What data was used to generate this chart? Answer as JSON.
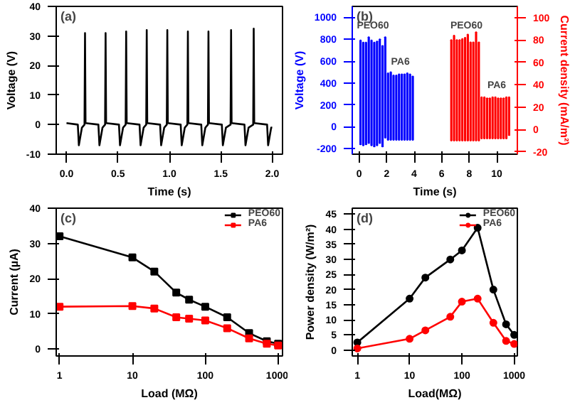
{
  "chart_data": [
    {
      "type": "line",
      "title": "(a)",
      "xlabel": "Time (s)",
      "ylabel": "Voltage (V)",
      "xlim": [
        -0.1,
        2.1
      ],
      "ylim": [
        -10,
        40
      ],
      "xticks": [
        {
          "value": 0,
          "label": "0.0"
        },
        {
          "value": 0.5,
          "label": "0.5"
        },
        {
          "value": 1,
          "label": "1.0"
        },
        {
          "value": 1.5,
          "label": "1.5"
        },
        {
          "value": 2,
          "label": "2.0"
        }
      ],
      "yticks": [
        -10,
        0,
        10,
        20,
        30,
        40
      ],
      "grid": false,
      "legend": false,
      "marker": "none",
      "line_style": "solid",
      "x": [
        0.0,
        0.11,
        0.12,
        0.15,
        0.175,
        0.18,
        0.185,
        0.31,
        0.32,
        0.35,
        0.375,
        0.38,
        0.385,
        0.51,
        0.52,
        0.55,
        0.575,
        0.58,
        0.585,
        0.71,
        0.72,
        0.75,
        0.775,
        0.78,
        0.785,
        0.91,
        0.92,
        0.95,
        0.975,
        0.98,
        0.985,
        1.11,
        1.12,
        1.15,
        1.175,
        1.18,
        1.185,
        1.31,
        1.32,
        1.35,
        1.375,
        1.38,
        1.385,
        1.51,
        1.52,
        1.55,
        1.595,
        1.6,
        1.605,
        1.73,
        1.74,
        1.77,
        1.815,
        1.82,
        1.825,
        1.95,
        1.96,
        1.99,
        2.0
      ],
      "series": [
        {
          "color": "#000000",
          "values": [
            0.5,
            0,
            -7,
            -1,
            0,
            31,
            0.5,
            0,
            -7,
            -1,
            0,
            31,
            0.5,
            0,
            -7,
            -1,
            0,
            31.5,
            0.5,
            0,
            -7,
            -1,
            0,
            32,
            0.5,
            0,
            -7,
            -1,
            0,
            32,
            0.5,
            0,
            -7,
            -1,
            0,
            31.5,
            0.5,
            0,
            -7,
            -1,
            0,
            31.5,
            0.5,
            0,
            -7,
            -1,
            0,
            32,
            0.5,
            0,
            -7,
            -1,
            0,
            32.5,
            0.5,
            0,
            -7,
            -1,
            -1
          ]
        }
      ]
    },
    {
      "type": "bar",
      "title": "(b)",
      "xlabel": "Time (s)",
      "ylabel": "Voltage (V)",
      "y2label": "Current density (mA/m²)",
      "xlim": [
        -0.5,
        11.5
      ],
      "ylim": [
        -250,
        1100
      ],
      "y2lim": [
        -22,
        110
      ],
      "xticks": [
        0,
        2,
        4,
        6,
        8,
        10
      ],
      "yticks": [
        -200,
        0,
        200,
        400,
        600,
        800,
        1000
      ],
      "y2ticks": [
        -20,
        0,
        20,
        40,
        60,
        80,
        100
      ],
      "grid": false,
      "legend": false,
      "annotations": [
        {
          "text": "PEO60",
          "x": 1.0,
          "y": 870
        },
        {
          "text": "PA6",
          "x": 3.0,
          "y": 540
        },
        {
          "text": "PEO60",
          "x": 7.8,
          "y": 870
        },
        {
          "text": "PA6",
          "x": 10.0,
          "y": 330
        }
      ],
      "series": [
        {
          "color": "#0000ff",
          "x": [
            0.1,
            0.3,
            0.5,
            0.7,
            0.9,
            1.1,
            1.3,
            1.5,
            1.7,
            1.9,
            2.1,
            2.3,
            2.5,
            2.7,
            2.9,
            3.1,
            3.3,
            3.5,
            3.7,
            3.9
          ],
          "base": [
            -160,
            -170,
            -160,
            -150,
            -170,
            -180,
            -170,
            -150,
            -180,
            -100,
            -120,
            -120,
            -120,
            -120,
            -120,
            -120,
            -120,
            -120,
            -120,
            -120
          ],
          "values": [
            950,
            940,
            930,
            970,
            960,
            950,
            950,
            950,
            920,
            920,
            610,
            620,
            590,
            590,
            600,
            600,
            600,
            610,
            600,
            580
          ]
        },
        {
          "color": "#ff0000",
          "axis": "y2",
          "x": [
            6.7,
            6.9,
            7.1,
            7.3,
            7.5,
            7.7,
            7.9,
            8.1,
            8.3,
            8.5,
            8.7,
            8.9,
            9.1,
            9.3,
            9.5,
            9.7,
            9.9,
            10.1,
            10.3,
            10.5,
            10.7,
            10.9
          ],
          "base": [
            -10,
            -10,
            -10,
            -10,
            -10,
            -10,
            -10,
            -10,
            -10,
            -10,
            -10,
            -8,
            -8,
            -8,
            -8,
            -8,
            -8,
            -8,
            -8,
            -8,
            -8,
            -5
          ],
          "values": [
            90,
            94,
            90,
            90,
            91,
            92,
            95,
            88,
            88,
            97,
            88,
            37,
            37,
            36,
            36,
            37,
            37,
            36,
            36,
            36,
            37,
            34
          ]
        }
      ]
    },
    {
      "type": "line",
      "title": "(c)",
      "xlabel": "Load (MΩ)",
      "ylabel": "Current (µA)",
      "log": "x",
      "xlim": [
        0.9,
        1150
      ],
      "ylim": [
        -2,
        40
      ],
      "xticks": [
        1,
        10,
        100,
        1000
      ],
      "yticks": [
        0,
        10,
        20,
        30,
        40
      ],
      "grid": false,
      "legend": "top right",
      "marker": "square",
      "line_style": "solid",
      "x": [
        1,
        10,
        20,
        40,
        60,
        100,
        200,
        400,
        700,
        1000
      ],
      "series": [
        {
          "name": "PEO60",
          "color": "#000000",
          "values": [
            32,
            26,
            22,
            16,
            14,
            12,
            9,
            4.5,
            2.2,
            1.5
          ]
        },
        {
          "name": "PA6",
          "color": "#ff0000",
          "values": [
            12,
            12.2,
            11.5,
            9,
            8.6,
            8.1,
            5.9,
            3,
            1.5,
            1
          ]
        }
      ]
    },
    {
      "type": "line",
      "title": "(d)",
      "xlabel": "Load(MΩ)",
      "ylabel": "Power density (W/m²)",
      "log": "x",
      "xlim": [
        0.8,
        1150
      ],
      "ylim": [
        -2,
        47
      ],
      "xticks": [
        1,
        10,
        100,
        1000
      ],
      "yticks": [
        0,
        5,
        10,
        15,
        20,
        25,
        30,
        35,
        40,
        45
      ],
      "grid": false,
      "legend": "top right",
      "marker": "circle",
      "line_style": "solid",
      "x": [
        1,
        10,
        20,
        60,
        100,
        200,
        400,
        700,
        1000
      ],
      "series": [
        {
          "name": "PEO60",
          "color": "#000000",
          "values": [
            2.5,
            17,
            24,
            30,
            33,
            40.5,
            20,
            8.5,
            5
          ]
        },
        {
          "name": "PA6",
          "color": "#ff0000",
          "values": [
            0.5,
            3.7,
            6.5,
            11,
            16,
            17,
            9,
            3,
            2
          ]
        }
      ]
    }
  ]
}
